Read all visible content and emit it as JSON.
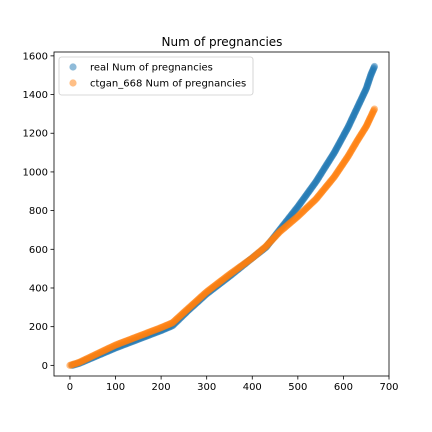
{
  "chart_data": {
    "type": "scatter",
    "title": "Num of pregnancies",
    "xlabel": "",
    "ylabel": "",
    "xlim": [
      -35,
      700
    ],
    "ylim": [
      -55,
      1620
    ],
    "x_ticks": [
      0,
      100,
      200,
      300,
      400,
      500,
      600,
      700
    ],
    "y_ticks": [
      0,
      200,
      400,
      600,
      800,
      1000,
      1200,
      1400,
      1600
    ],
    "grid": false,
    "legend_position": "top-left",
    "series": [
      {
        "name": "real Num of pregnancies",
        "color": "#1f77b4",
        "x": [
          5,
          20,
          60,
          100,
          150,
          200,
          225,
          260,
          300,
          350,
          400,
          430,
          460,
          500,
          540,
          580,
          610,
          630,
          650,
          660,
          668
        ],
        "y": [
          0,
          10,
          50,
          90,
          135,
          180,
          205,
          285,
          370,
          460,
          555,
          610,
          700,
          820,
          950,
          1100,
          1230,
          1330,
          1430,
          1500,
          1545
        ]
      },
      {
        "name": "ctgan_668 Num of pregnancies",
        "color": "#ff7f0e",
        "x": [
          0,
          20,
          60,
          100,
          150,
          200,
          225,
          260,
          300,
          350,
          400,
          430,
          460,
          500,
          540,
          580,
          610,
          630,
          650,
          660,
          668
        ],
        "y": [
          0,
          15,
          60,
          105,
          150,
          195,
          220,
          295,
          380,
          470,
          555,
          615,
          690,
          770,
          860,
          975,
          1080,
          1160,
          1235,
          1285,
          1325
        ]
      }
    ]
  }
}
